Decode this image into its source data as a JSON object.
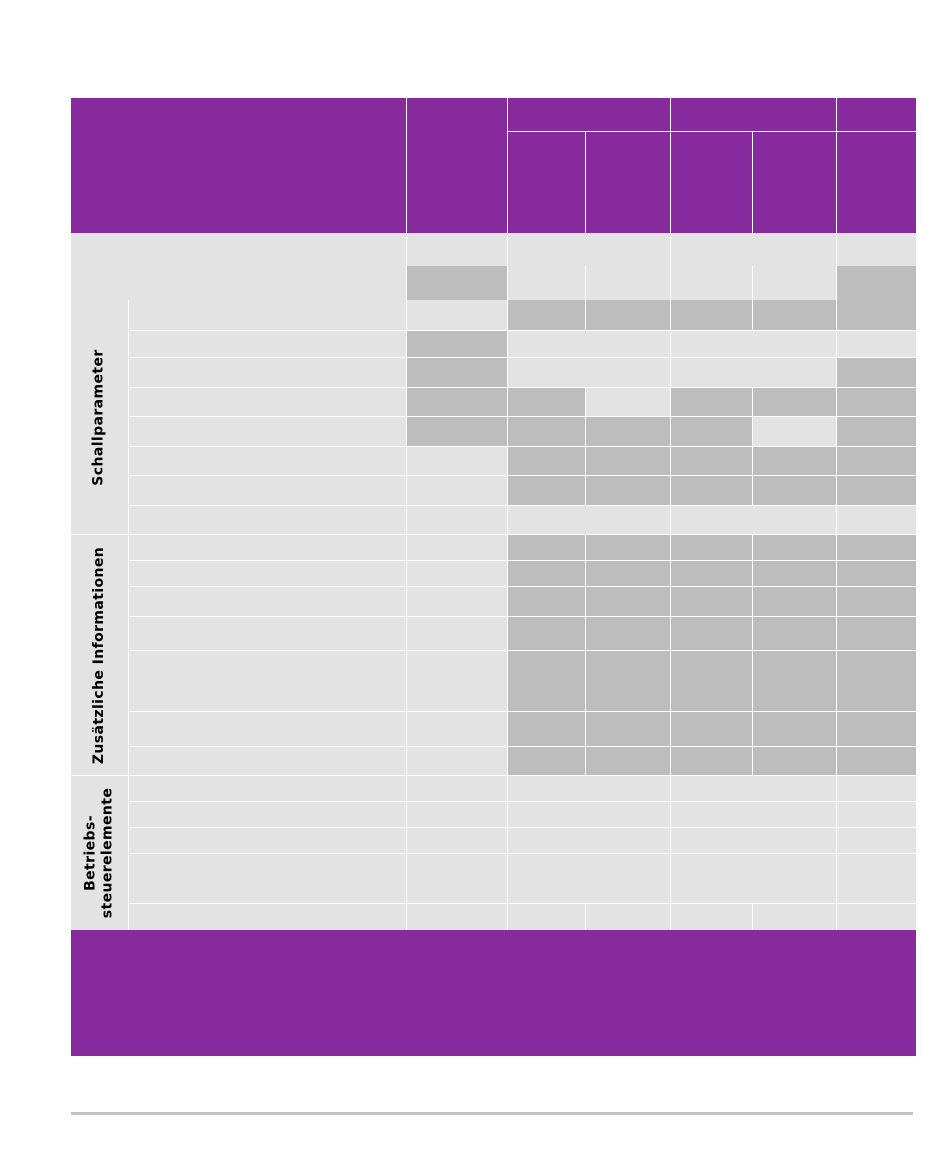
{
  "colors": {
    "header_purple": "#872a9e",
    "cell_light": "#e3e3e3",
    "cell_dark": "#bdbdbd",
    "rule": "#c4c4c4"
  },
  "sections": {
    "schall": "Schallparameter",
    "zusatz": "Zusätzliche Informationen",
    "betrieb_line1": "Betriebs-",
    "betrieb_line2": "steuerelemente"
  }
}
